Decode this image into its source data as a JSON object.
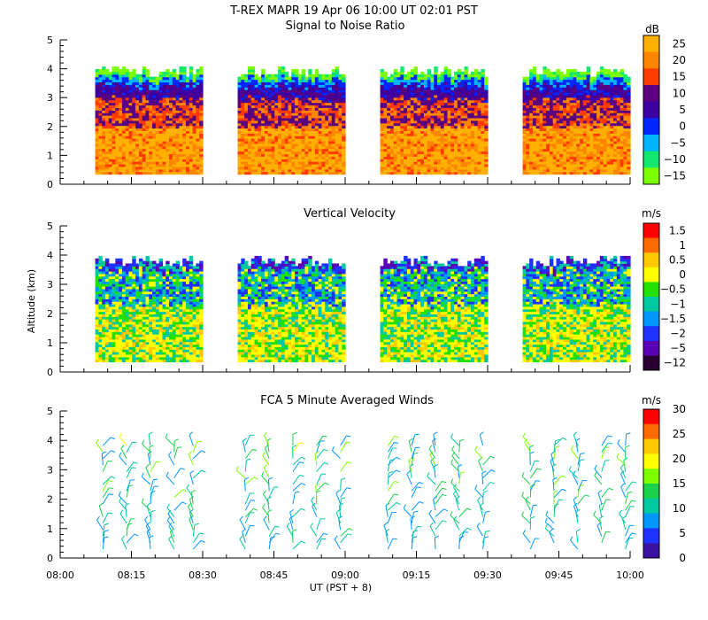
{
  "header": {
    "title": "T-REX   MAPR 19 Apr 06   10:00 UT   02:01   PST"
  },
  "x_axis": {
    "label": "UT  (PST + 8)",
    "ticks": [
      {
        "label": "08:00",
        "minutes": 0
      },
      {
        "label": "08:15",
        "minutes": 15
      },
      {
        "label": "08:30",
        "minutes": 30
      },
      {
        "label": "08:45",
        "minutes": 45
      },
      {
        "label": "09:00",
        "minutes": 60
      },
      {
        "label": "09:15",
        "minutes": 75
      },
      {
        "label": "09:30",
        "minutes": 90
      },
      {
        "label": "09:45",
        "minutes": 105
      },
      {
        "label": "10:00",
        "minutes": 120
      }
    ]
  },
  "y_axis": {
    "label": "Altitude (km)",
    "ticks": [
      "0",
      "1",
      "2",
      "3",
      "4",
      "5"
    ]
  },
  "chart_data": [
    {
      "type": "heatmap",
      "title": "Signal to Noise Ratio",
      "xlabel": "UT  (PST + 8)",
      "ylabel": "Altitude (km)",
      "xlim_minutes": [
        0,
        120
      ],
      "ylim": [
        0,
        5
      ],
      "units": "dB",
      "colorbar_labels": [
        "25",
        "20",
        "15",
        "10",
        "5",
        "0",
        "−5",
        "−10",
        "−15"
      ],
      "colorbar_colors": [
        "#ffb000",
        "#ff8400",
        "#ff3b00",
        "#5b007f",
        "#3c00a3",
        "#0026ff",
        "#00b4ff",
        "#13e86e",
        "#7cff00"
      ],
      "data_segments_minutes": [
        [
          7,
          30
        ],
        [
          37,
          60
        ],
        [
          67,
          90
        ],
        [
          97,
          120
        ]
      ],
      "altitude_range_km": [
        0.35,
        3.9
      ],
      "description_bands": [
        {
          "alt_km": [
            0.35,
            1.7
          ],
          "typical_dB": 20
        },
        {
          "alt_km": [
            1.7,
            2.8
          ],
          "typical_dB": 15
        },
        {
          "alt_km": [
            2.8,
            3.4
          ],
          "typical_dB": 8
        },
        {
          "alt_km": [
            3.4,
            3.9
          ],
          "typical_dB": -10
        }
      ]
    },
    {
      "type": "heatmap",
      "title": "Vertical Velocity",
      "xlabel": "UT  (PST + 8)",
      "ylabel": "Altitude (km)",
      "xlim_minutes": [
        0,
        120
      ],
      "ylim": [
        0,
        5
      ],
      "units": "m/s",
      "colorbar_labels": [
        "1.5",
        "1",
        "0.5",
        "0",
        "−0.5",
        "−1",
        "−1.5",
        "−2",
        "−5",
        "−12"
      ],
      "colorbar_colors": [
        "#ff0000",
        "#ff6a00",
        "#ffc800",
        "#ffff00",
        "#22e000",
        "#00c8a0",
        "#0096ff",
        "#1e32ff",
        "#5a00b4",
        "#280032"
      ],
      "data_segments_minutes": [
        [
          7,
          30
        ],
        [
          37,
          60
        ],
        [
          67,
          90
        ],
        [
          97,
          120
        ]
      ],
      "altitude_range_km": [
        0.35,
        3.8
      ]
    },
    {
      "type": "scatter",
      "subtype": "wind_barbs",
      "title": "FCA 5 Minute Averaged Winds",
      "xlabel": "UT  (PST + 8)",
      "ylabel": "Altitude (km)",
      "xlim_minutes": [
        0,
        120
      ],
      "ylim": [
        0,
        5
      ],
      "units": "m/s",
      "colorbar_labels": [
        "30",
        "25",
        "20",
        "15",
        "10",
        "5",
        "0"
      ],
      "colorbar_colors": [
        "#ff0000",
        "#ff6a00",
        "#ffc800",
        "#ffff00",
        "#7cff00",
        "#18d04a",
        "#00c8a0",
        "#0096ff",
        "#1e32ff",
        "#3a10a0"
      ],
      "profile_times_minutes": [
        9,
        14,
        19,
        24,
        28,
        39,
        44,
        49,
        54,
        59,
        69,
        74,
        79,
        84,
        89,
        99,
        104,
        109,
        114,
        119
      ],
      "altitude_range_km": [
        0.3,
        3.9
      ],
      "typical_speed_ms": [
        5,
        15
      ]
    }
  ]
}
